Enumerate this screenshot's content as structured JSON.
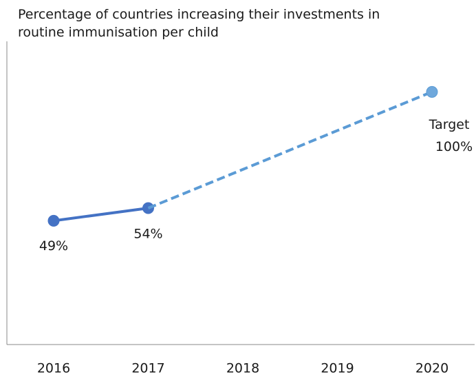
{
  "chart_data": {
    "type": "line",
    "title": "Percentage of countries increasing their investments in routine immunisation per child",
    "categories": [
      "2016",
      "2017",
      "2018",
      "2019",
      "2020"
    ],
    "ylim": [
      0,
      120
    ],
    "series": [
      {
        "color": "#4472c4",
        "dash": false,
        "values": [
          49,
          54,
          null,
          null,
          null
        ],
        "value_labels": [
          "49%",
          "54%",
          null,
          null,
          null
        ]
      },
      {
        "color": "#5b9bd5",
        "dash": true,
        "values": [
          null,
          54,
          69.3,
          84.7,
          100
        ],
        "value_labels": [
          null,
          null,
          null,
          null,
          "100%"
        ]
      }
    ],
    "annotations": [
      {
        "text": "Target",
        "category": 4
      }
    ]
  }
}
